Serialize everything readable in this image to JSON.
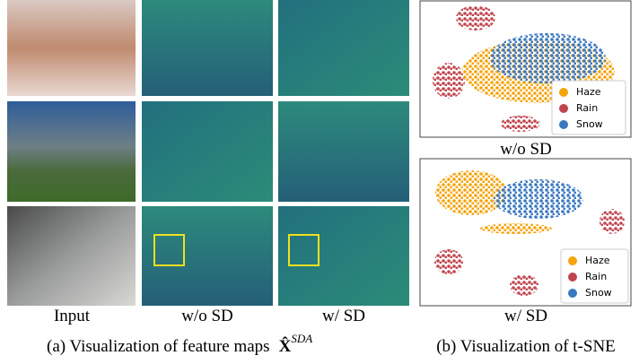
{
  "column_labels": [
    "Input",
    "w/o SD",
    "w/ SD"
  ],
  "caption_a": {
    "text": "(a) Visualization of feature maps",
    "symbol": "X̂",
    "superscript": "SDA"
  },
  "tsne": [
    {
      "label": "w/o SD",
      "legend": [
        "Haze",
        "Rain",
        "Snow"
      ]
    },
    {
      "label": "w/ SD",
      "legend": [
        "Haze",
        "Rain",
        "Snow"
      ]
    }
  ],
  "caption_b": "(b) Visualization of t-SNE"
}
